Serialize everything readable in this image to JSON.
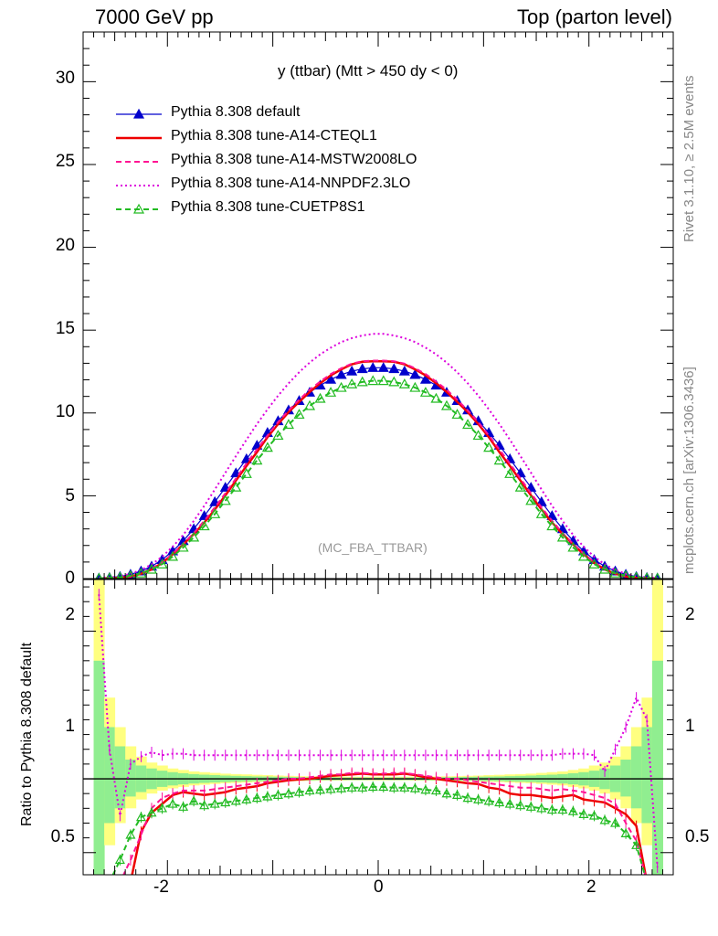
{
  "header": {
    "left": "7000 GeV pp",
    "right": "Top (parton level)"
  },
  "side_texts": {
    "rivet": "Rivet 3.1.10, ≥ 2.5M events",
    "mcplots": "mcplots.cern.ch [arXiv:1306.3436]"
  },
  "chart_data": [
    {
      "type": "line",
      "title": "y (ttbar) (Mtt > 450 dy < 0)",
      "watermark": "(MC_FBA_TTBAR)",
      "xlim": [
        -2.8,
        2.8
      ],
      "ylim": [
        0,
        33
      ],
      "y_ticks": [
        0,
        5,
        10,
        15,
        20,
        25,
        30
      ],
      "x": [
        -2.65,
        -2.55,
        -2.45,
        -2.35,
        -2.25,
        -2.15,
        -2.05,
        -1.95,
        -1.85,
        -1.75,
        -1.65,
        -1.55,
        -1.45,
        -1.35,
        -1.25,
        -1.15,
        -1.05,
        -0.95,
        -0.85,
        -0.75,
        -0.65,
        -0.55,
        -0.45,
        -0.35,
        -0.25,
        -0.15,
        -0.05,
        0.05,
        0.15,
        0.25,
        0.35,
        0.45,
        0.55,
        0.65,
        0.75,
        0.85,
        0.95,
        1.05,
        1.15,
        1.25,
        1.35,
        1.45,
        1.55,
        1.65,
        1.75,
        1.85,
        1.95,
        2.05,
        2.15,
        2.25,
        2.35,
        2.45,
        2.55,
        2.65
      ],
      "series": [
        {
          "name": "Pythia 8.308 default",
          "color": "#0000cc",
          "style": "solid-triangle",
          "values": [
            0.03,
            0.06,
            0.12,
            0.25,
            0.45,
            0.74,
            1.14,
            1.66,
            2.28,
            3.0,
            3.79,
            4.63,
            5.5,
            6.37,
            7.22,
            8.04,
            8.81,
            9.52,
            10.17,
            10.74,
            11.24,
            11.67,
            12.02,
            12.31,
            12.52,
            12.66,
            12.73,
            12.73,
            12.66,
            12.52,
            12.31,
            12.02,
            11.67,
            11.24,
            10.74,
            10.17,
            9.52,
            8.81,
            8.04,
            7.22,
            6.37,
            5.5,
            4.63,
            3.79,
            3.0,
            2.28,
            1.66,
            1.14,
            0.74,
            0.45,
            0.25,
            0.12,
            0.06,
            0.03
          ]
        },
        {
          "name": "Pythia 8.308 tune-A14-CTEQL1",
          "color": "#ee0000",
          "style": "solid",
          "values": [
            0.01,
            0.02,
            0.04,
            0.12,
            0.29,
            0.55,
            0.94,
            1.48,
            2.07,
            2.69,
            3.39,
            4.17,
            5.02,
            5.92,
            6.8,
            7.64,
            8.54,
            9.33,
            10.05,
            10.67,
            11.27,
            11.8,
            12.27,
            12.63,
            12.94,
            13.09,
            13.12,
            13.12,
            13.09,
            12.94,
            12.63,
            12.27,
            11.8,
            11.27,
            10.67,
            10.05,
            9.33,
            8.54,
            7.64,
            6.8,
            5.92,
            5.02,
            4.17,
            3.39,
            2.69,
            2.07,
            1.48,
            0.94,
            0.55,
            0.29,
            0.12,
            0.04,
            0.02,
            0.01
          ]
        },
        {
          "name": "Pythia 8.308 tune-A14-MSTW2008LO",
          "color": "#ff1493",
          "style": "dashed",
          "values": [
            0.01,
            0.02,
            0.05,
            0.14,
            0.32,
            0.6,
            0.99,
            1.5,
            2.1,
            2.75,
            3.5,
            4.3,
            5.15,
            6.05,
            6.95,
            7.8,
            8.65,
            9.45,
            10.15,
            10.8,
            11.4,
            11.9,
            12.35,
            12.7,
            12.98,
            13.12,
            13.16,
            13.16,
            13.12,
            12.98,
            12.7,
            12.35,
            11.9,
            11.4,
            10.8,
            10.15,
            9.45,
            8.65,
            7.8,
            6.95,
            6.05,
            5.15,
            4.3,
            3.5,
            2.75,
            2.1,
            1.5,
            0.99,
            0.6,
            0.32,
            0.14,
            0.05,
            0.02,
            0.01
          ]
        },
        {
          "name": "Pythia 8.308 tune-A14-NNPDF2.3LO",
          "color": "#dd00dd",
          "style": "dotted",
          "values": [
            0.04,
            0.07,
            0.14,
            0.29,
            0.52,
            0.86,
            1.32,
            1.93,
            2.64,
            3.48,
            4.4,
            5.38,
            6.39,
            7.4,
            8.38,
            9.33,
            10.22,
            11.04,
            11.79,
            12.46,
            13.04,
            13.54,
            13.94,
            14.28,
            14.52,
            14.68,
            14.77,
            14.77,
            14.68,
            14.52,
            14.28,
            13.94,
            13.54,
            13.04,
            12.46,
            11.79,
            11.04,
            10.22,
            9.33,
            8.38,
            7.4,
            6.39,
            5.38,
            4.4,
            3.48,
            2.64,
            1.93,
            1.32,
            0.86,
            0.52,
            0.29,
            0.14,
            0.07,
            0.04
          ]
        },
        {
          "name": "Pythia 8.308 tune-CUETP8S1",
          "color": "#22bb22",
          "style": "dashed-open-triangle",
          "values": [
            0.02,
            0.04,
            0.08,
            0.17,
            0.32,
            0.55,
            0.87,
            1.33,
            1.88,
            2.49,
            3.17,
            3.9,
            4.7,
            5.51,
            6.33,
            7.14,
            7.91,
            8.64,
            9.3,
            9.91,
            10.43,
            10.87,
            11.24,
            11.53,
            11.74,
            11.87,
            11.94,
            11.94,
            11.87,
            11.74,
            11.53,
            11.24,
            10.87,
            10.43,
            9.91,
            9.3,
            8.64,
            7.91,
            7.14,
            6.33,
            5.51,
            4.7,
            3.9,
            3.17,
            2.49,
            1.88,
            1.33,
            0.87,
            0.55,
            0.32,
            0.17,
            0.08,
            0.04,
            0.02
          ]
        }
      ]
    },
    {
      "type": "line",
      "ylabel": "Ratio to Pythia 8.308 default",
      "xlim": [
        -2.8,
        2.8
      ],
      "ylim": [
        0.35,
        2.35
      ],
      "x_ticks": [
        -2,
        0,
        2
      ],
      "y_ticks": [
        0.5,
        1,
        2
      ],
      "x": [
        -2.65,
        -2.55,
        -2.45,
        -2.35,
        -2.25,
        -2.15,
        -2.05,
        -1.95,
        -1.85,
        -1.75,
        -1.65,
        -1.55,
        -1.45,
        -1.35,
        -1.25,
        -1.15,
        -1.05,
        -0.95,
        -0.85,
        -0.75,
        -0.65,
        -0.55,
        -0.45,
        -0.35,
        -0.25,
        -0.15,
        -0.05,
        0.05,
        0.15,
        0.25,
        0.35,
        0.45,
        0.55,
        0.65,
        0.75,
        0.85,
        0.95,
        1.05,
        1.15,
        1.25,
        1.35,
        1.45,
        1.55,
        1.65,
        1.75,
        1.85,
        1.95,
        2.05,
        2.15,
        2.25,
        2.35,
        2.45,
        2.55,
        2.65
      ],
      "band_yellow": [
        [
          -0.35,
          3.1
        ],
        [
          0.55,
          1.55
        ],
        [
          0.7,
          1.35
        ],
        [
          0.8,
          1.22
        ],
        [
          0.86,
          1.15
        ],
        [
          0.9,
          1.11
        ],
        [
          0.92,
          1.09
        ],
        [
          0.935,
          1.07
        ],
        [
          0.945,
          1.06
        ],
        [
          0.955,
          1.05
        ],
        [
          0.96,
          1.045
        ],
        [
          0.965,
          1.04
        ],
        [
          0.97,
          1.035
        ],
        [
          0.972,
          1.032
        ],
        [
          0.975,
          1.03
        ],
        [
          0.978,
          1.027
        ],
        [
          0.98,
          1.025
        ],
        [
          0.982,
          1.022
        ],
        [
          0.984,
          1.02
        ],
        [
          0.985,
          1.018
        ],
        [
          0.986,
          1.017
        ],
        [
          0.987,
          1.016
        ],
        [
          0.988,
          1.015
        ],
        [
          0.988,
          1.015
        ],
        [
          0.989,
          1.014
        ],
        [
          0.989,
          1.014
        ],
        [
          0.989,
          1.014
        ],
        [
          0.989,
          1.014
        ],
        [
          0.989,
          1.014
        ],
        [
          0.989,
          1.014
        ],
        [
          0.988,
          1.015
        ],
        [
          0.988,
          1.015
        ],
        [
          0.987,
          1.016
        ],
        [
          0.986,
          1.017
        ],
        [
          0.985,
          1.018
        ],
        [
          0.984,
          1.02
        ],
        [
          0.982,
          1.022
        ],
        [
          0.98,
          1.025
        ],
        [
          0.978,
          1.027
        ],
        [
          0.975,
          1.03
        ],
        [
          0.972,
          1.032
        ],
        [
          0.97,
          1.035
        ],
        [
          0.965,
          1.04
        ],
        [
          0.96,
          1.045
        ],
        [
          0.955,
          1.05
        ],
        [
          0.945,
          1.06
        ],
        [
          0.935,
          1.07
        ],
        [
          0.92,
          1.09
        ],
        [
          0.9,
          1.11
        ],
        [
          0.86,
          1.15
        ],
        [
          0.8,
          1.22
        ],
        [
          0.7,
          1.35
        ],
        [
          0.55,
          1.55
        ],
        [
          -0.35,
          3.1
        ]
      ],
      "band_green": [
        [
          0.2,
          1.8
        ],
        [
          0.7,
          1.35
        ],
        [
          0.8,
          1.22
        ],
        [
          0.88,
          1.13
        ],
        [
          0.91,
          1.09
        ],
        [
          0.93,
          1.07
        ],
        [
          0.945,
          1.055
        ],
        [
          0.955,
          1.045
        ],
        [
          0.962,
          1.038
        ],
        [
          0.968,
          1.032
        ],
        [
          0.972,
          1.028
        ],
        [
          0.975,
          1.025
        ],
        [
          0.978,
          1.022
        ],
        [
          0.98,
          1.02
        ],
        [
          0.982,
          1.018
        ],
        [
          0.984,
          1.016
        ],
        [
          0.985,
          1.015
        ],
        [
          0.986,
          1.014
        ],
        [
          0.987,
          1.013
        ],
        [
          0.988,
          1.012
        ],
        [
          0.989,
          1.011
        ],
        [
          0.99,
          1.01
        ],
        [
          0.99,
          1.01
        ],
        [
          0.991,
          1.009
        ],
        [
          0.991,
          1.009
        ],
        [
          0.991,
          1.009
        ],
        [
          0.992,
          1.008
        ],
        [
          0.992,
          1.008
        ],
        [
          0.991,
          1.009
        ],
        [
          0.991,
          1.009
        ],
        [
          0.991,
          1.009
        ],
        [
          0.99,
          1.01
        ],
        [
          0.99,
          1.01
        ],
        [
          0.989,
          1.011
        ],
        [
          0.988,
          1.012
        ],
        [
          0.987,
          1.013
        ],
        [
          0.986,
          1.014
        ],
        [
          0.985,
          1.015
        ],
        [
          0.984,
          1.016
        ],
        [
          0.982,
          1.018
        ],
        [
          0.98,
          1.02
        ],
        [
          0.978,
          1.022
        ],
        [
          0.975,
          1.025
        ],
        [
          0.972,
          1.028
        ],
        [
          0.968,
          1.032
        ],
        [
          0.962,
          1.038
        ],
        [
          0.955,
          1.045
        ],
        [
          0.945,
          1.055
        ],
        [
          0.93,
          1.07
        ],
        [
          0.91,
          1.09
        ],
        [
          0.88,
          1.13
        ],
        [
          0.8,
          1.22
        ],
        [
          0.7,
          1.35
        ],
        [
          0.2,
          1.8
        ]
      ],
      "series": [
        {
          "name": "Pythia 8.308 tune-A14-CTEQL1",
          "color": "#ee0000",
          "style": "solid",
          "values": [
            0.3,
            0.3,
            0.3,
            0.3,
            0.64,
            0.77,
            0.83,
            0.89,
            0.91,
            0.9,
            0.89,
            0.9,
            0.91,
            0.93,
            0.94,
            0.95,
            0.97,
            0.98,
            0.99,
            0.995,
            1.0,
            1.01,
            1.02,
            1.025,
            1.03,
            1.035,
            1.03,
            1.03,
            1.03,
            1.035,
            1.025,
            1.01,
            1.0,
            0.99,
            0.98,
            0.97,
            0.965,
            0.94,
            0.93,
            0.9,
            0.89,
            0.89,
            0.88,
            0.87,
            0.88,
            0.89,
            0.86,
            0.85,
            0.84,
            0.8,
            0.76,
            0.68,
            0.3,
            0.3
          ]
        },
        {
          "name": "Pythia 8.308 tune-A14-MSTW2008LO",
          "color": "#ff1493",
          "style": "dashed",
          "values": [
            0.3,
            0.3,
            0.3,
            0.45,
            0.62,
            0.8,
            0.87,
            0.9,
            0.92,
            0.92,
            0.92,
            0.93,
            0.94,
            0.95,
            0.96,
            0.97,
            0.98,
            0.99,
            1.0,
            1.0,
            1.01,
            1.02,
            1.03,
            1.03,
            1.04,
            1.04,
            1.035,
            1.035,
            1.04,
            1.04,
            1.03,
            1.02,
            1.01,
            1.0,
            1.0,
            0.99,
            0.98,
            0.97,
            0.96,
            0.95,
            0.94,
            0.94,
            0.93,
            0.92,
            0.93,
            0.92,
            0.91,
            0.89,
            0.87,
            0.83,
            0.7,
            0.58,
            0.3,
            0.3
          ]
        },
        {
          "name": "Pythia 8.308 tune-A14-NNPDF2.3LO",
          "color": "#dd00dd",
          "style": "dotted",
          "values": [
            2.25,
            1.2,
            0.75,
            1.1,
            1.15,
            1.18,
            1.16,
            1.17,
            1.17,
            1.16,
            1.16,
            1.16,
            1.16,
            1.16,
            1.16,
            1.16,
            1.16,
            1.16,
            1.16,
            1.16,
            1.16,
            1.16,
            1.16,
            1.16,
            1.16,
            1.16,
            1.16,
            1.16,
            1.16,
            1.16,
            1.16,
            1.16,
            1.16,
            1.16,
            1.16,
            1.16,
            1.16,
            1.16,
            1.16,
            1.16,
            1.16,
            1.16,
            1.16,
            1.16,
            1.17,
            1.17,
            1.17,
            1.16,
            1.05,
            1.2,
            1.35,
            1.55,
            1.4,
            0.4
          ]
        },
        {
          "name": "Pythia 8.308 tune-CUETP8S1",
          "color": "#22bb22",
          "style": "dashed-open-triangle",
          "values": [
            0.3,
            0.3,
            0.45,
            0.62,
            0.74,
            0.77,
            0.8,
            0.83,
            0.81,
            0.85,
            0.82,
            0.83,
            0.84,
            0.85,
            0.86,
            0.87,
            0.88,
            0.89,
            0.9,
            0.91,
            0.92,
            0.925,
            0.93,
            0.935,
            0.94,
            0.94,
            0.945,
            0.945,
            0.94,
            0.94,
            0.935,
            0.925,
            0.92,
            0.9,
            0.89,
            0.87,
            0.86,
            0.85,
            0.84,
            0.83,
            0.82,
            0.81,
            0.8,
            0.79,
            0.79,
            0.78,
            0.76,
            0.75,
            0.72,
            0.7,
            0.63,
            0.55,
            0.3,
            0.3
          ]
        }
      ]
    }
  ]
}
